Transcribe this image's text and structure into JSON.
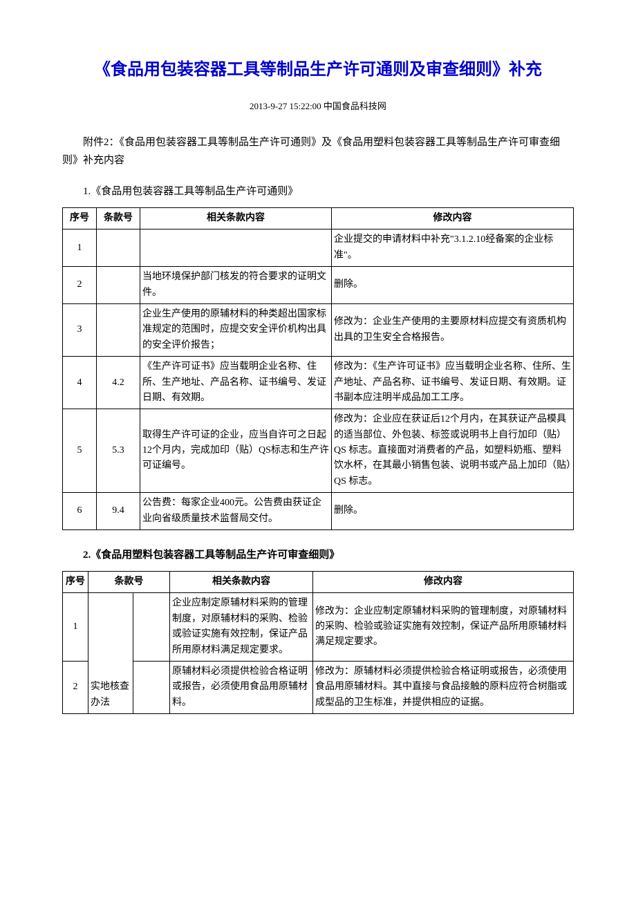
{
  "title": "《食品用包装容器工具等制品生产许可通则及审查细则》补充",
  "meta": "2013-9-27 15:22:00 中国食品科技网",
  "intro": "附件2：《食品用包装容器工具等制品生产许可通则》及《食品用塑料包装容器工具等制品生产许可审查细则》补充内容",
  "section1_heading": "1.《食品用包装容器工具等制品生产许可通则》",
  "table1": {
    "headers": [
      "序号",
      "条款号",
      "相关条款内容",
      "修改内容"
    ],
    "rows": [
      {
        "seq": "1",
        "clause": "",
        "content": "",
        "change": "企业提交的申请材料中补充\"3.1.2.10经备案的企业标准\"。"
      },
      {
        "seq": "2",
        "clause": "",
        "content": "当地环境保护部门核发的符合要求的证明文件。",
        "change": "删除。"
      },
      {
        "seq": "3",
        "clause": "",
        "content": "企业生产使用的原辅材料的种类超出国家标准规定的范围时，应提交安全评价机构出具的安全评价报告；",
        "change": "修改为：企业生产使用的主要原材料应提交有资质机构出具的卫生安全合格报告。"
      },
      {
        "seq": "4",
        "clause": "4.2",
        "content": "《生产许可证书》应当载明企业名称、住所、生产地址、产品名称、证书编号、发证日期、有效期。",
        "change": "修改为：《生产许可证书》应当载明企业名称、住所、生产地址、产品名称、证书编号、发证日期、有效期。证书副本应注明半成品加工工序。"
      },
      {
        "seq": "5",
        "clause": "5.3",
        "content": "取得生产许可证的企业，应当自许可之日起12个月内，完成加印（贴）QS标志和生产许可证编号。",
        "change": "修改为：企业应在获证后12个月内，在其获证产品模具的适当部位、外包装、标签或说明书上自行加印（贴）QS 标志。直接面对消费者的产品，如塑料奶瓶、塑料饮水杯，在其最小销售包装、说明书或产品上加印（贴）QS 标志。"
      },
      {
        "seq": "6",
        "clause": "9.4",
        "content": "公告费：每家企业400元。公告费由获证企业向省级质量技术监督局交付。",
        "change": "删除。"
      }
    ]
  },
  "section2_heading": "2.《食品用塑料包装容器工具等制品生产许可审查细则》",
  "table2": {
    "headers": [
      "序号",
      "条款号",
      "相关条款内容",
      "修改内容"
    ],
    "clause_group": "实地核查办法",
    "rows": [
      {
        "seq": "1",
        "clause_b": "",
        "content": "企业应制定原辅材料采购的管理制度，对原辅材料的采购、检验或验证实施有效控制，保证产品所用原材料满足规定要求。",
        "change": "修改为：企业应制定原辅材料采购的管理制度，对原辅材料的采购、检验或验证实施有效控制，保证产品所用原辅材料满足规定要求。"
      },
      {
        "seq": "2",
        "clause_b": "",
        "content": "原辅材料必须提供检验合格证明或报告，必须使用食品用原辅材料。",
        "change": "修改为：原辅材料必须提供检验合格证明或报告，必须使用食品用原辅材料。其中直接与食品接触的原料应符合树脂或成型品的卫生标准，并提供相应的证据。"
      }
    ]
  }
}
